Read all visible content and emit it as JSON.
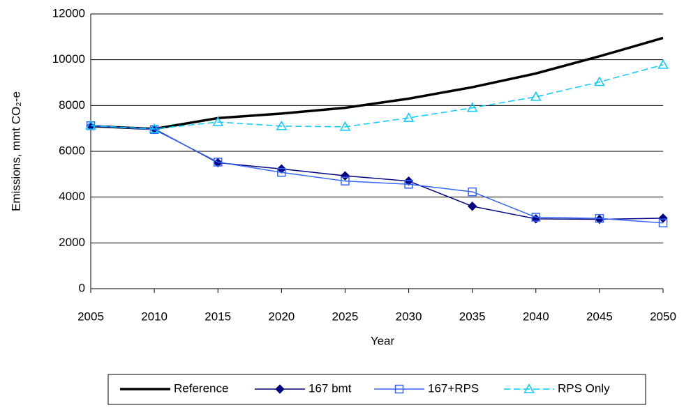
{
  "chart_data": {
    "type": "line",
    "x_label": "Year",
    "y_label": "Emissions, mmt CO₂-e",
    "x": [
      2005,
      2010,
      2015,
      2020,
      2025,
      2030,
      2035,
      2040,
      2045,
      2050
    ],
    "xlim": [
      2005,
      2050
    ],
    "xticks": [
      2005,
      2010,
      2015,
      2020,
      2025,
      2030,
      2035,
      2040,
      2045,
      2050
    ],
    "ylim": [
      0,
      12000
    ],
    "yticks": [
      0,
      2000,
      4000,
      6000,
      8000,
      10000,
      12000
    ],
    "grid": true,
    "legend": "bottom",
    "series": [
      {
        "name": "Reference",
        "color": "#000000",
        "linewidth": 3.5,
        "marker": "none",
        "dashed": false,
        "values": [
          7100,
          6980,
          7450,
          7650,
          7900,
          8300,
          8800,
          9400,
          10150,
          10950
        ]
      },
      {
        "name": "167 bmt",
        "color": "#000080",
        "linewidth": 1.5,
        "marker": "diamond",
        "dashed": false,
        "values": [
          7100,
          6980,
          5500,
          5230,
          4930,
          4700,
          3600,
          3050,
          3030,
          3080
        ]
      },
      {
        "name": "167+RPS",
        "color": "#3366ff",
        "linewidth": 1.5,
        "marker": "square",
        "dashed": false,
        "values": [
          7120,
          6950,
          5530,
          5080,
          4700,
          4560,
          4230,
          3120,
          3070,
          2870
        ]
      },
      {
        "name": "RPS Only",
        "color": "#00ccff",
        "linewidth": 1.5,
        "marker": "triangle",
        "dashed": true,
        "values": [
          7120,
          6980,
          7280,
          7100,
          7070,
          7460,
          7900,
          8380,
          9030,
          9780
        ]
      }
    ]
  }
}
